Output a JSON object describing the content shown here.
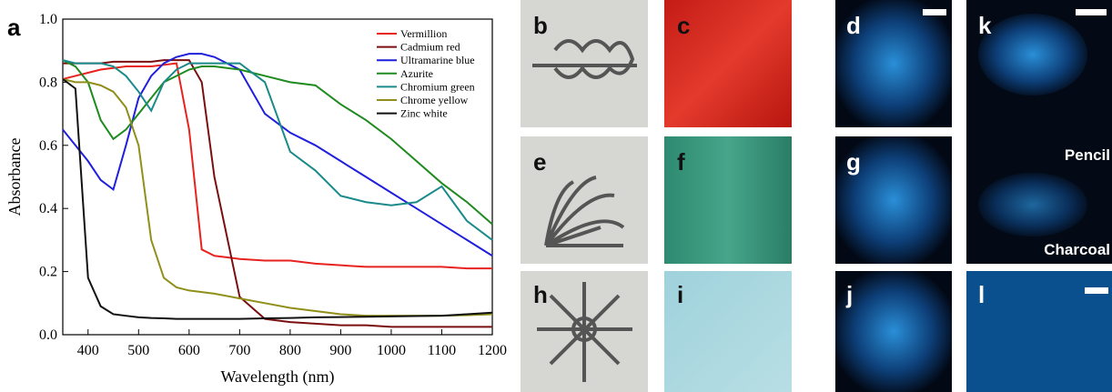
{
  "chart_data": {
    "type": "line",
    "panel_label": "a",
    "x_label": "Wavelength (nm)",
    "y_label": "Absorbance",
    "x": [
      350,
      375,
      400,
      425,
      450,
      475,
      500,
      525,
      550,
      575,
      600,
      625,
      650,
      700,
      750,
      800,
      850,
      900,
      950,
      1000,
      1050,
      1100,
      1150,
      1200
    ],
    "series": [
      {
        "name": "Vermillion",
        "color": "#e8231f",
        "values": [
          0.81,
          0.82,
          0.83,
          0.84,
          0.845,
          0.85,
          0.85,
          0.85,
          0.855,
          0.86,
          0.65,
          0.27,
          0.25,
          0.24,
          0.235,
          0.235,
          0.225,
          0.22,
          0.215,
          0.215,
          0.215,
          0.215,
          0.21,
          0.21
        ]
      },
      {
        "name": "Cadmium red",
        "color": "#7a0f10",
        "values": [
          0.86,
          0.86,
          0.86,
          0.86,
          0.865,
          0.865,
          0.865,
          0.865,
          0.87,
          0.87,
          0.87,
          0.8,
          0.5,
          0.12,
          0.05,
          0.04,
          0.035,
          0.03,
          0.03,
          0.025,
          0.025,
          0.025,
          0.025,
          0.025
        ]
      },
      {
        "name": "Ultramarine blue",
        "color": "#1f1fdc",
        "values": [
          0.65,
          0.6,
          0.55,
          0.49,
          0.46,
          0.6,
          0.75,
          0.82,
          0.86,
          0.88,
          0.89,
          0.89,
          0.88,
          0.84,
          0.7,
          0.64,
          0.6,
          0.55,
          0.5,
          0.45,
          0.4,
          0.35,
          0.3,
          0.25
        ]
      },
      {
        "name": "Azurite",
        "color": "#1f8a1f",
        "values": [
          0.87,
          0.85,
          0.8,
          0.68,
          0.62,
          0.65,
          0.7,
          0.75,
          0.8,
          0.82,
          0.84,
          0.85,
          0.85,
          0.84,
          0.82,
          0.8,
          0.79,
          0.73,
          0.68,
          0.62,
          0.55,
          0.48,
          0.42,
          0.35
        ]
      },
      {
        "name": "Chromium green",
        "color": "#1a8a8a",
        "values": [
          0.87,
          0.86,
          0.86,
          0.86,
          0.85,
          0.82,
          0.77,
          0.71,
          0.8,
          0.84,
          0.86,
          0.86,
          0.86,
          0.86,
          0.8,
          0.58,
          0.52,
          0.44,
          0.42,
          0.41,
          0.42,
          0.47,
          0.36,
          0.3
        ]
      },
      {
        "name": "Chrome yellow",
        "color": "#8f8f1a",
        "values": [
          0.81,
          0.8,
          0.8,
          0.79,
          0.77,
          0.72,
          0.6,
          0.3,
          0.18,
          0.15,
          0.14,
          0.135,
          0.13,
          0.115,
          0.1,
          0.085,
          0.075,
          0.065,
          0.06,
          0.06,
          0.06,
          0.06,
          0.062,
          0.065
        ]
      },
      {
        "name": "Zinc white",
        "color": "#111111",
        "values": [
          0.81,
          0.78,
          0.18,
          0.09,
          0.065,
          0.06,
          0.055,
          0.053,
          0.052,
          0.05,
          0.05,
          0.05,
          0.05,
          0.05,
          0.052,
          0.053,
          0.055,
          0.056,
          0.057,
          0.058,
          0.059,
          0.06,
          0.065,
          0.07
        ]
      }
    ],
    "xlim": [
      350,
      1200
    ],
    "ylim": [
      0,
      1
    ],
    "xticks": [
      400,
      500,
      600,
      700,
      800,
      900,
      1000,
      1100,
      1200
    ],
    "yticks": [
      {
        "value": 0,
        "label": "0.0"
      },
      0.2,
      0.4,
      0.6,
      0.8,
      {
        "value": 1,
        "label": "1.0"
      }
    ],
    "legend": "upper right"
  },
  "panels": {
    "labels": [
      "b",
      "c",
      "d",
      "k",
      "e",
      "f",
      "g",
      "h",
      "i",
      "j",
      "l"
    ],
    "pencil": "Pencil",
    "charcoal": "Charcoal"
  }
}
